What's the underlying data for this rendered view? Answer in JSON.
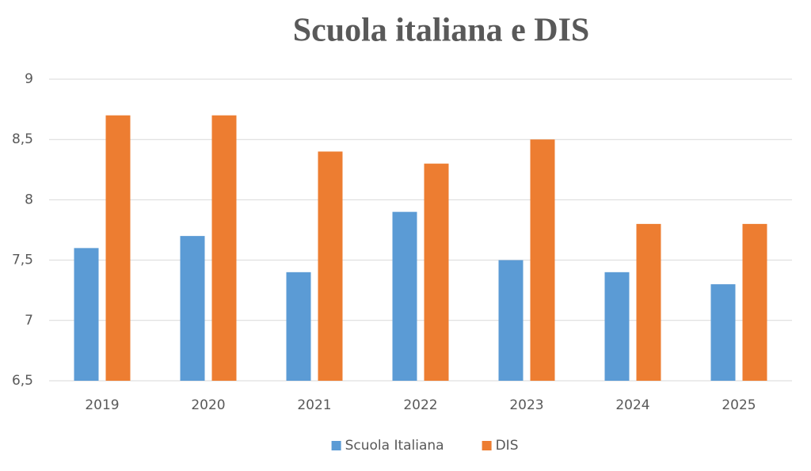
{
  "chart_data": {
    "type": "bar",
    "title": "Scuola italiana e DIS",
    "categories": [
      "2019",
      "2020",
      "2021",
      "2022",
      "2023",
      "2024",
      "2025"
    ],
    "series": [
      {
        "name": "Scuola Italiana",
        "color": "#5b9bd5",
        "values": [
          7.6,
          7.7,
          7.4,
          7.9,
          7.5,
          7.4,
          7.3
        ]
      },
      {
        "name": "DIS",
        "color": "#ed7d31",
        "values": [
          8.7,
          8.7,
          8.4,
          8.3,
          8.5,
          7.8,
          7.8
        ]
      }
    ],
    "ylim": [
      6.5,
      9
    ],
    "yticks": [
      {
        "value": 6.5,
        "label": "6,5"
      },
      7,
      {
        "value": 7.5,
        "label": "7,5"
      },
      8,
      {
        "value": 8.5,
        "label": "8,5"
      },
      9
    ],
    "grid": true,
    "legend": "bottom"
  }
}
